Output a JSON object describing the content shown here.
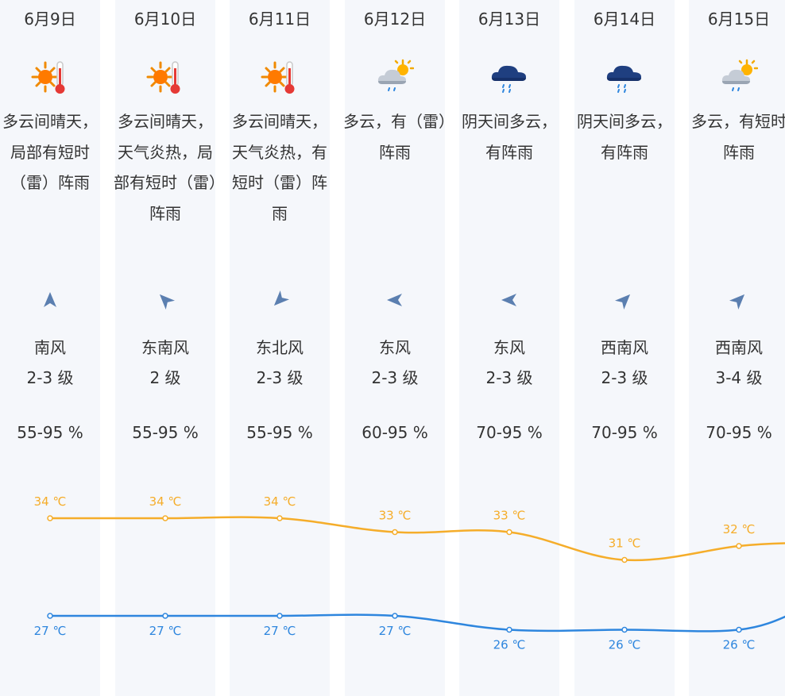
{
  "days": [
    {
      "date": "6月9日",
      "icon": "sun-thermometer-icon",
      "condition": "多云间晴天，局部有短时（雷）阵雨",
      "wind_dir": "南风",
      "wind_level": "2-3 级",
      "humidity": "55-95 %",
      "high": "34 ℃",
      "low": "27 ℃",
      "arrow_rotation": 0
    },
    {
      "date": "6月10日",
      "icon": "sun-thermometer-icon",
      "condition": "多云间晴天，天气炎热，局部有短时（雷）阵雨",
      "wind_dir": "东南风",
      "wind_level": "2 级",
      "humidity": "55-95 %",
      "high": "34 ℃",
      "low": "27 ℃",
      "arrow_rotation": -45
    },
    {
      "date": "6月11日",
      "icon": "sun-thermometer-icon",
      "condition": "多云间晴天，天气炎热，有短时（雷）阵雨",
      "wind_dir": "东北风",
      "wind_level": "2-3 级",
      "humidity": "55-95 %",
      "high": "34 ℃",
      "low": "27 ℃",
      "arrow_rotation": -135
    },
    {
      "date": "6月12日",
      "icon": "cloud-sun-rain-icon",
      "condition": "多云，有（雷）阵雨",
      "wind_dir": "东风",
      "wind_level": "2-3 级",
      "humidity": "60-95 %",
      "high": "33 ℃",
      "low": "27 ℃",
      "arrow_rotation": -90
    },
    {
      "date": "6月13日",
      "icon": "dark-cloud-rain-icon",
      "condition": "阴天间多云，有阵雨",
      "wind_dir": "东风",
      "wind_level": "2-3 级",
      "humidity": "70-95 %",
      "high": "33 ℃",
      "low": "26 ℃",
      "arrow_rotation": -90
    },
    {
      "date": "6月14日",
      "icon": "dark-cloud-rain-icon",
      "condition": "阴天间多云，有阵雨",
      "wind_dir": "西南风",
      "wind_level": "2-3 级",
      "humidity": "70-95 %",
      "high": "31 ℃",
      "low": "26 ℃",
      "arrow_rotation": 45
    },
    {
      "date": "6月15日",
      "icon": "cloud-sun-rain-icon",
      "condition": "多云，有短时阵雨",
      "wind_dir": "西南风",
      "wind_level": "3-4 级",
      "humidity": "70-95 %",
      "high": "32 ℃",
      "low": "26 ℃",
      "arrow_rotation": 45
    }
  ],
  "chart_data": {
    "type": "line",
    "categories": [
      "6月9日",
      "6月10日",
      "6月11日",
      "6月12日",
      "6月13日",
      "6月14日",
      "6月15日"
    ],
    "series": [
      {
        "values": [
          34,
          34,
          34,
          33,
          33,
          31,
          32
        ],
        "color": "#f5ad2a"
      },
      {
        "values": [
          27,
          27,
          27,
          27,
          26,
          26,
          26
        ],
        "color": "#2e86de"
      }
    ]
  },
  "colors": {
    "high": "#f5ad2a",
    "low": "#2e86de",
    "arrow": "#5b7fb0",
    "column_bg": "#f5f7fb"
  }
}
